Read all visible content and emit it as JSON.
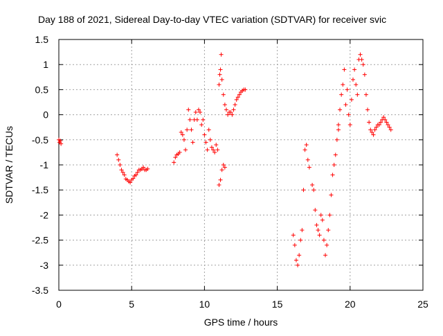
{
  "chart_data": {
    "type": "scatter",
    "title": "Day 188 of 2021, Sidereal Day-to-day VTEC variation (SDTVAR) for receiver svic",
    "xlabel": "GPS time / hours",
    "ylabel": "SDTVAR / TECUs",
    "xlim": [
      0,
      25
    ],
    "ylim": [
      -3.5,
      1.5
    ],
    "xticks": [
      0,
      5,
      10,
      15,
      20,
      25
    ],
    "xtick_labels": [
      "0",
      "5",
      "10",
      "15",
      "20",
      "25"
    ],
    "yticks": [
      -3.5,
      -3,
      -2.5,
      -2,
      -1.5,
      -1,
      -0.5,
      0,
      0.5,
      1,
      1.5
    ],
    "ytick_labels": [
      "-3.5",
      "-3",
      "-2.5",
      "-2",
      "-1.5",
      "-1",
      "-0.5",
      "0",
      "0.5",
      "1",
      "1.5"
    ],
    "grid": true,
    "marker": "+",
    "marker_color": "#ff0000",
    "series": [
      {
        "name": "SDTVAR",
        "x": [
          0.0,
          0.05,
          0.1,
          0.15,
          4.0,
          4.1,
          4.2,
          4.3,
          4.4,
          4.5,
          4.6,
          4.7,
          4.8,
          4.9,
          5.0,
          5.1,
          5.2,
          5.3,
          5.4,
          5.5,
          5.6,
          5.7,
          5.8,
          5.9,
          6.0,
          6.1,
          7.9,
          8.0,
          8.1,
          8.2,
          8.3,
          8.4,
          8.5,
          8.6,
          8.7,
          8.8,
          8.9,
          9.0,
          9.1,
          9.2,
          9.3,
          9.4,
          9.5,
          9.6,
          9.7,
          9.8,
          9.9,
          10.0,
          10.1,
          10.2,
          10.3,
          10.4,
          10.5,
          10.6,
          10.7,
          10.8,
          10.9,
          11.0,
          11.05,
          11.1,
          11.15,
          11.2,
          11.3,
          11.4,
          11.5,
          11.6,
          11.7,
          11.8,
          11.9,
          12.0,
          12.1,
          12.2,
          12.3,
          12.4,
          12.5,
          12.6,
          12.7,
          12.8,
          11.0,
          11.1,
          11.2,
          11.3,
          11.4,
          16.1,
          16.2,
          16.3,
          16.4,
          16.5,
          16.6,
          16.7,
          16.8,
          16.9,
          17.0,
          17.1,
          17.2,
          17.4,
          17.5,
          17.6,
          17.7,
          17.8,
          17.9,
          18.0,
          18.1,
          18.2,
          18.3,
          18.4,
          18.5,
          18.6,
          18.7,
          18.8,
          18.9,
          19.0,
          19.1,
          19.2,
          19.2,
          19.3,
          19.4,
          19.5,
          19.6,
          19.7,
          19.8,
          19.9,
          20.0,
          20.1,
          20.2,
          20.3,
          20.4,
          20.5,
          20.6,
          20.7,
          20.8,
          20.9,
          21.0,
          21.1,
          21.2,
          21.3,
          21.4,
          21.5,
          21.6,
          21.7,
          21.8,
          21.9,
          22.0,
          22.1,
          22.2,
          22.3,
          22.4,
          22.5,
          22.6,
          22.7,
          22.8
        ],
        "y": [
          -0.5,
          -0.55,
          -0.52,
          -0.58,
          -0.8,
          -0.9,
          -1.0,
          -1.1,
          -1.15,
          -1.2,
          -1.28,
          -1.3,
          -1.33,
          -1.35,
          -1.3,
          -1.27,
          -1.22,
          -1.2,
          -1.15,
          -1.1,
          -1.1,
          -1.08,
          -1.05,
          -1.1,
          -1.1,
          -1.08,
          -0.95,
          -0.85,
          -0.8,
          -0.78,
          -0.75,
          -0.35,
          -0.4,
          -0.5,
          -0.7,
          -0.3,
          0.1,
          -0.1,
          -0.3,
          -0.55,
          -0.1,
          0.05,
          -0.1,
          0.1,
          0.05,
          -0.2,
          -0.1,
          -0.4,
          -0.55,
          -0.7,
          -0.3,
          -0.5,
          -0.65,
          -0.7,
          -0.75,
          -0.6,
          -0.7,
          0.6,
          0.8,
          0.9,
          1.2,
          0.7,
          0.4,
          0.2,
          0.1,
          0.0,
          0.05,
          0.05,
          0.0,
          0.1,
          0.2,
          0.3,
          0.35,
          0.4,
          0.45,
          0.48,
          0.5,
          0.5,
          -1.4,
          -1.3,
          -1.1,
          -1.0,
          -1.05,
          -2.4,
          -2.6,
          -2.9,
          -3.0,
          -2.8,
          -2.5,
          -2.3,
          -1.5,
          -0.7,
          -0.6,
          -0.9,
          -1.05,
          -1.4,
          -1.5,
          -1.9,
          -2.2,
          -2.3,
          -2.4,
          -2.0,
          -2.1,
          -2.5,
          -2.8,
          -2.6,
          -2.3,
          -2.0,
          -1.6,
          -1.2,
          -1.0,
          -0.8,
          -0.5,
          -0.3,
          -0.2,
          0.1,
          0.4,
          0.6,
          0.9,
          0.2,
          0.5,
          0.0,
          -0.2,
          0.3,
          0.7,
          0.9,
          0.6,
          0.4,
          1.1,
          1.2,
          1.1,
          1.0,
          0.8,
          0.4,
          0.1,
          -0.15,
          -0.3,
          -0.35,
          -0.4,
          -0.3,
          -0.25,
          -0.2,
          -0.2,
          -0.15,
          -0.1,
          -0.05,
          -0.1,
          -0.15,
          -0.2,
          -0.25,
          -0.3
        ]
      }
    ]
  }
}
